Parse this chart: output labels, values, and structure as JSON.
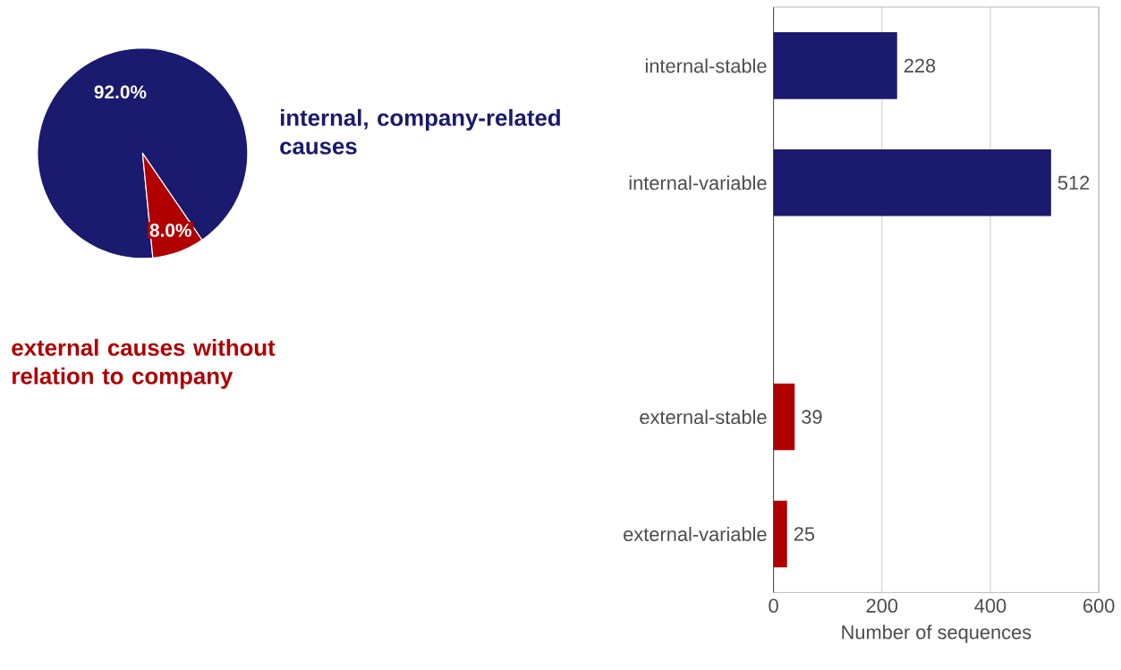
{
  "chart_data": [
    {
      "type": "pie",
      "categories": [
        "internal, company-related causes",
        "external causes without relation to company"
      ],
      "values": [
        92.0,
        8.0
      ],
      "colors": [
        "#1a1a6e",
        "#b00000"
      ],
      "value_labels": [
        "92.0%",
        "8.0%"
      ]
    },
    {
      "type": "bar",
      "orientation": "horizontal",
      "categories": [
        "internal-stable",
        "internal-variable",
        null,
        "external-stable",
        "external-variable"
      ],
      "values": [
        228,
        512,
        null,
        39,
        25
      ],
      "colors": [
        "#1a1a6e",
        "#1a1a6e",
        "#1a1a6e",
        "#b00000",
        "#b00000"
      ],
      "xlim": [
        0,
        600
      ],
      "xticks": [
        0,
        200,
        400,
        600
      ],
      "xlabel": "Number of sequences",
      "grid": "x",
      "data_labels": true
    }
  ]
}
